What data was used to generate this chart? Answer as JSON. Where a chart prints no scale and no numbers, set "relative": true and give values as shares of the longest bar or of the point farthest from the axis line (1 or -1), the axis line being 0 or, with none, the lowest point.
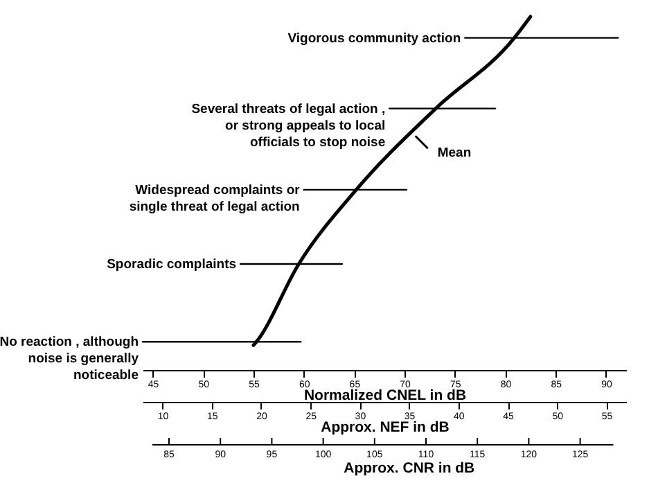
{
  "chart_data": {
    "type": "line",
    "relative": true,
    "xlim": [
      44,
      92
    ],
    "xticks": [
      45,
      50,
      55,
      60,
      65,
      70,
      75,
      80,
      85,
      90
    ],
    "xlabel": "Normalized CNEL in dB",
    "x2lim": [
      8,
      57
    ],
    "x2ticks": [
      10,
      15,
      20,
      25,
      30,
      35,
      40,
      45,
      50,
      55
    ],
    "x2label": "Approx. NEF in dB",
    "series": [
      {
        "color": "#000000",
        "x": [
          55,
          55.3,
          59.5,
          65.2,
          73.1,
          80.9,
          82.5
        ],
        "values": [
          0.07,
          0.08,
          0.3,
          0.51,
          0.74,
          0.94,
          1
        ]
      },
      {
        "color": "#000000",
        "x": [
          44,
          59.7
        ],
        "values": [
          0.08,
          0.08
        ]
      },
      {
        "color": "#000000",
        "x": [
          53.7,
          63.8
        ],
        "values": [
          0.3,
          0.3
        ]
      },
      {
        "color": "#000000",
        "x": [
          60,
          70.2
        ],
        "values": [
          0.51,
          0.51
        ]
      },
      {
        "color": "#000000",
        "x": [
          68.5,
          79
        ],
        "values": [
          0.74,
          0.74
        ]
      },
      {
        "color": "#000000",
        "x": [
          76,
          91.2
        ],
        "values": [
          0.94,
          0.94
        ]
      }
    ],
    "annotations": [
      {
        "text": "No reaction , although\nnoise is generally\nnoticeable",
        "x": 44,
        "y": 0.08
      },
      {
        "text": "Sporadic complaints",
        "x": 53.7,
        "y": 0.3
      },
      {
        "text": "Widespread complaints or\nsingle threat of legal action",
        "x": 60,
        "y": 0.51
      },
      {
        "text": "Several threats of legal action ,\nor strong appeals to local\nofficials to stop noise",
        "x": 68.5,
        "y": 0.74
      },
      {
        "text": "Vigorous community action",
        "x": 76,
        "y": 0.94
      },
      {
        "text": "Mean",
        "x": 70.8,
        "y": 0.67
      },
      "85",
      "90",
      "95",
      "100",
      "105",
      "110",
      "115",
      "120",
      "125",
      "Approx. CNR in dB"
    ]
  }
}
